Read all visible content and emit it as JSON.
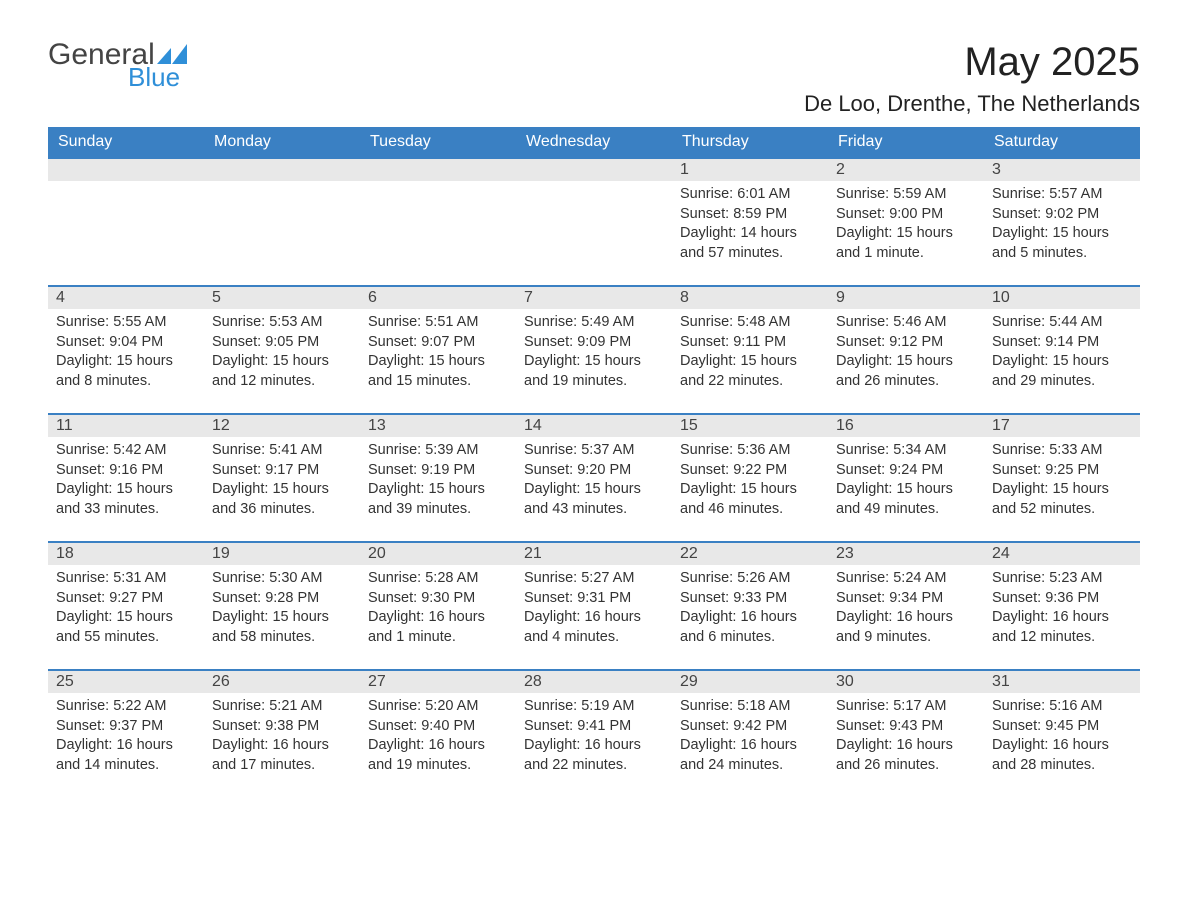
{
  "logo": {
    "text1": "General",
    "text2": "Blue",
    "accent_color": "#2f8fd8"
  },
  "title": "May 2025",
  "location": "De Loo, Drenthe, The Netherlands",
  "colors": {
    "header_bg": "#3a80c3",
    "header_text": "#ffffff",
    "daynum_bg": "#e8e8e8",
    "body_text": "#333333",
    "row_border": "#3a80c3"
  },
  "day_headers": [
    "Sunday",
    "Monday",
    "Tuesday",
    "Wednesday",
    "Thursday",
    "Friday",
    "Saturday"
  ],
  "weeks": [
    [
      null,
      null,
      null,
      null,
      {
        "n": "1",
        "sr": "Sunrise: 6:01 AM",
        "ss": "Sunset: 8:59 PM",
        "dl": "Daylight: 14 hours and 57 minutes."
      },
      {
        "n": "2",
        "sr": "Sunrise: 5:59 AM",
        "ss": "Sunset: 9:00 PM",
        "dl": "Daylight: 15 hours and 1 minute."
      },
      {
        "n": "3",
        "sr": "Sunrise: 5:57 AM",
        "ss": "Sunset: 9:02 PM",
        "dl": "Daylight: 15 hours and 5 minutes."
      }
    ],
    [
      {
        "n": "4",
        "sr": "Sunrise: 5:55 AM",
        "ss": "Sunset: 9:04 PM",
        "dl": "Daylight: 15 hours and 8 minutes."
      },
      {
        "n": "5",
        "sr": "Sunrise: 5:53 AM",
        "ss": "Sunset: 9:05 PM",
        "dl": "Daylight: 15 hours and 12 minutes."
      },
      {
        "n": "6",
        "sr": "Sunrise: 5:51 AM",
        "ss": "Sunset: 9:07 PM",
        "dl": "Daylight: 15 hours and 15 minutes."
      },
      {
        "n": "7",
        "sr": "Sunrise: 5:49 AM",
        "ss": "Sunset: 9:09 PM",
        "dl": "Daylight: 15 hours and 19 minutes."
      },
      {
        "n": "8",
        "sr": "Sunrise: 5:48 AM",
        "ss": "Sunset: 9:11 PM",
        "dl": "Daylight: 15 hours and 22 minutes."
      },
      {
        "n": "9",
        "sr": "Sunrise: 5:46 AM",
        "ss": "Sunset: 9:12 PM",
        "dl": "Daylight: 15 hours and 26 minutes."
      },
      {
        "n": "10",
        "sr": "Sunrise: 5:44 AM",
        "ss": "Sunset: 9:14 PM",
        "dl": "Daylight: 15 hours and 29 minutes."
      }
    ],
    [
      {
        "n": "11",
        "sr": "Sunrise: 5:42 AM",
        "ss": "Sunset: 9:16 PM",
        "dl": "Daylight: 15 hours and 33 minutes."
      },
      {
        "n": "12",
        "sr": "Sunrise: 5:41 AM",
        "ss": "Sunset: 9:17 PM",
        "dl": "Daylight: 15 hours and 36 minutes."
      },
      {
        "n": "13",
        "sr": "Sunrise: 5:39 AM",
        "ss": "Sunset: 9:19 PM",
        "dl": "Daylight: 15 hours and 39 minutes."
      },
      {
        "n": "14",
        "sr": "Sunrise: 5:37 AM",
        "ss": "Sunset: 9:20 PM",
        "dl": "Daylight: 15 hours and 43 minutes."
      },
      {
        "n": "15",
        "sr": "Sunrise: 5:36 AM",
        "ss": "Sunset: 9:22 PM",
        "dl": "Daylight: 15 hours and 46 minutes."
      },
      {
        "n": "16",
        "sr": "Sunrise: 5:34 AM",
        "ss": "Sunset: 9:24 PM",
        "dl": "Daylight: 15 hours and 49 minutes."
      },
      {
        "n": "17",
        "sr": "Sunrise: 5:33 AM",
        "ss": "Sunset: 9:25 PM",
        "dl": "Daylight: 15 hours and 52 minutes."
      }
    ],
    [
      {
        "n": "18",
        "sr": "Sunrise: 5:31 AM",
        "ss": "Sunset: 9:27 PM",
        "dl": "Daylight: 15 hours and 55 minutes."
      },
      {
        "n": "19",
        "sr": "Sunrise: 5:30 AM",
        "ss": "Sunset: 9:28 PM",
        "dl": "Daylight: 15 hours and 58 minutes."
      },
      {
        "n": "20",
        "sr": "Sunrise: 5:28 AM",
        "ss": "Sunset: 9:30 PM",
        "dl": "Daylight: 16 hours and 1 minute."
      },
      {
        "n": "21",
        "sr": "Sunrise: 5:27 AM",
        "ss": "Sunset: 9:31 PM",
        "dl": "Daylight: 16 hours and 4 minutes."
      },
      {
        "n": "22",
        "sr": "Sunrise: 5:26 AM",
        "ss": "Sunset: 9:33 PM",
        "dl": "Daylight: 16 hours and 6 minutes."
      },
      {
        "n": "23",
        "sr": "Sunrise: 5:24 AM",
        "ss": "Sunset: 9:34 PM",
        "dl": "Daylight: 16 hours and 9 minutes."
      },
      {
        "n": "24",
        "sr": "Sunrise: 5:23 AM",
        "ss": "Sunset: 9:36 PM",
        "dl": "Daylight: 16 hours and 12 minutes."
      }
    ],
    [
      {
        "n": "25",
        "sr": "Sunrise: 5:22 AM",
        "ss": "Sunset: 9:37 PM",
        "dl": "Daylight: 16 hours and 14 minutes."
      },
      {
        "n": "26",
        "sr": "Sunrise: 5:21 AM",
        "ss": "Sunset: 9:38 PM",
        "dl": "Daylight: 16 hours and 17 minutes."
      },
      {
        "n": "27",
        "sr": "Sunrise: 5:20 AM",
        "ss": "Sunset: 9:40 PM",
        "dl": "Daylight: 16 hours and 19 minutes."
      },
      {
        "n": "28",
        "sr": "Sunrise: 5:19 AM",
        "ss": "Sunset: 9:41 PM",
        "dl": "Daylight: 16 hours and 22 minutes."
      },
      {
        "n": "29",
        "sr": "Sunrise: 5:18 AM",
        "ss": "Sunset: 9:42 PM",
        "dl": "Daylight: 16 hours and 24 minutes."
      },
      {
        "n": "30",
        "sr": "Sunrise: 5:17 AM",
        "ss": "Sunset: 9:43 PM",
        "dl": "Daylight: 16 hours and 26 minutes."
      },
      {
        "n": "31",
        "sr": "Sunrise: 5:16 AM",
        "ss": "Sunset: 9:45 PM",
        "dl": "Daylight: 16 hours and 28 minutes."
      }
    ]
  ]
}
